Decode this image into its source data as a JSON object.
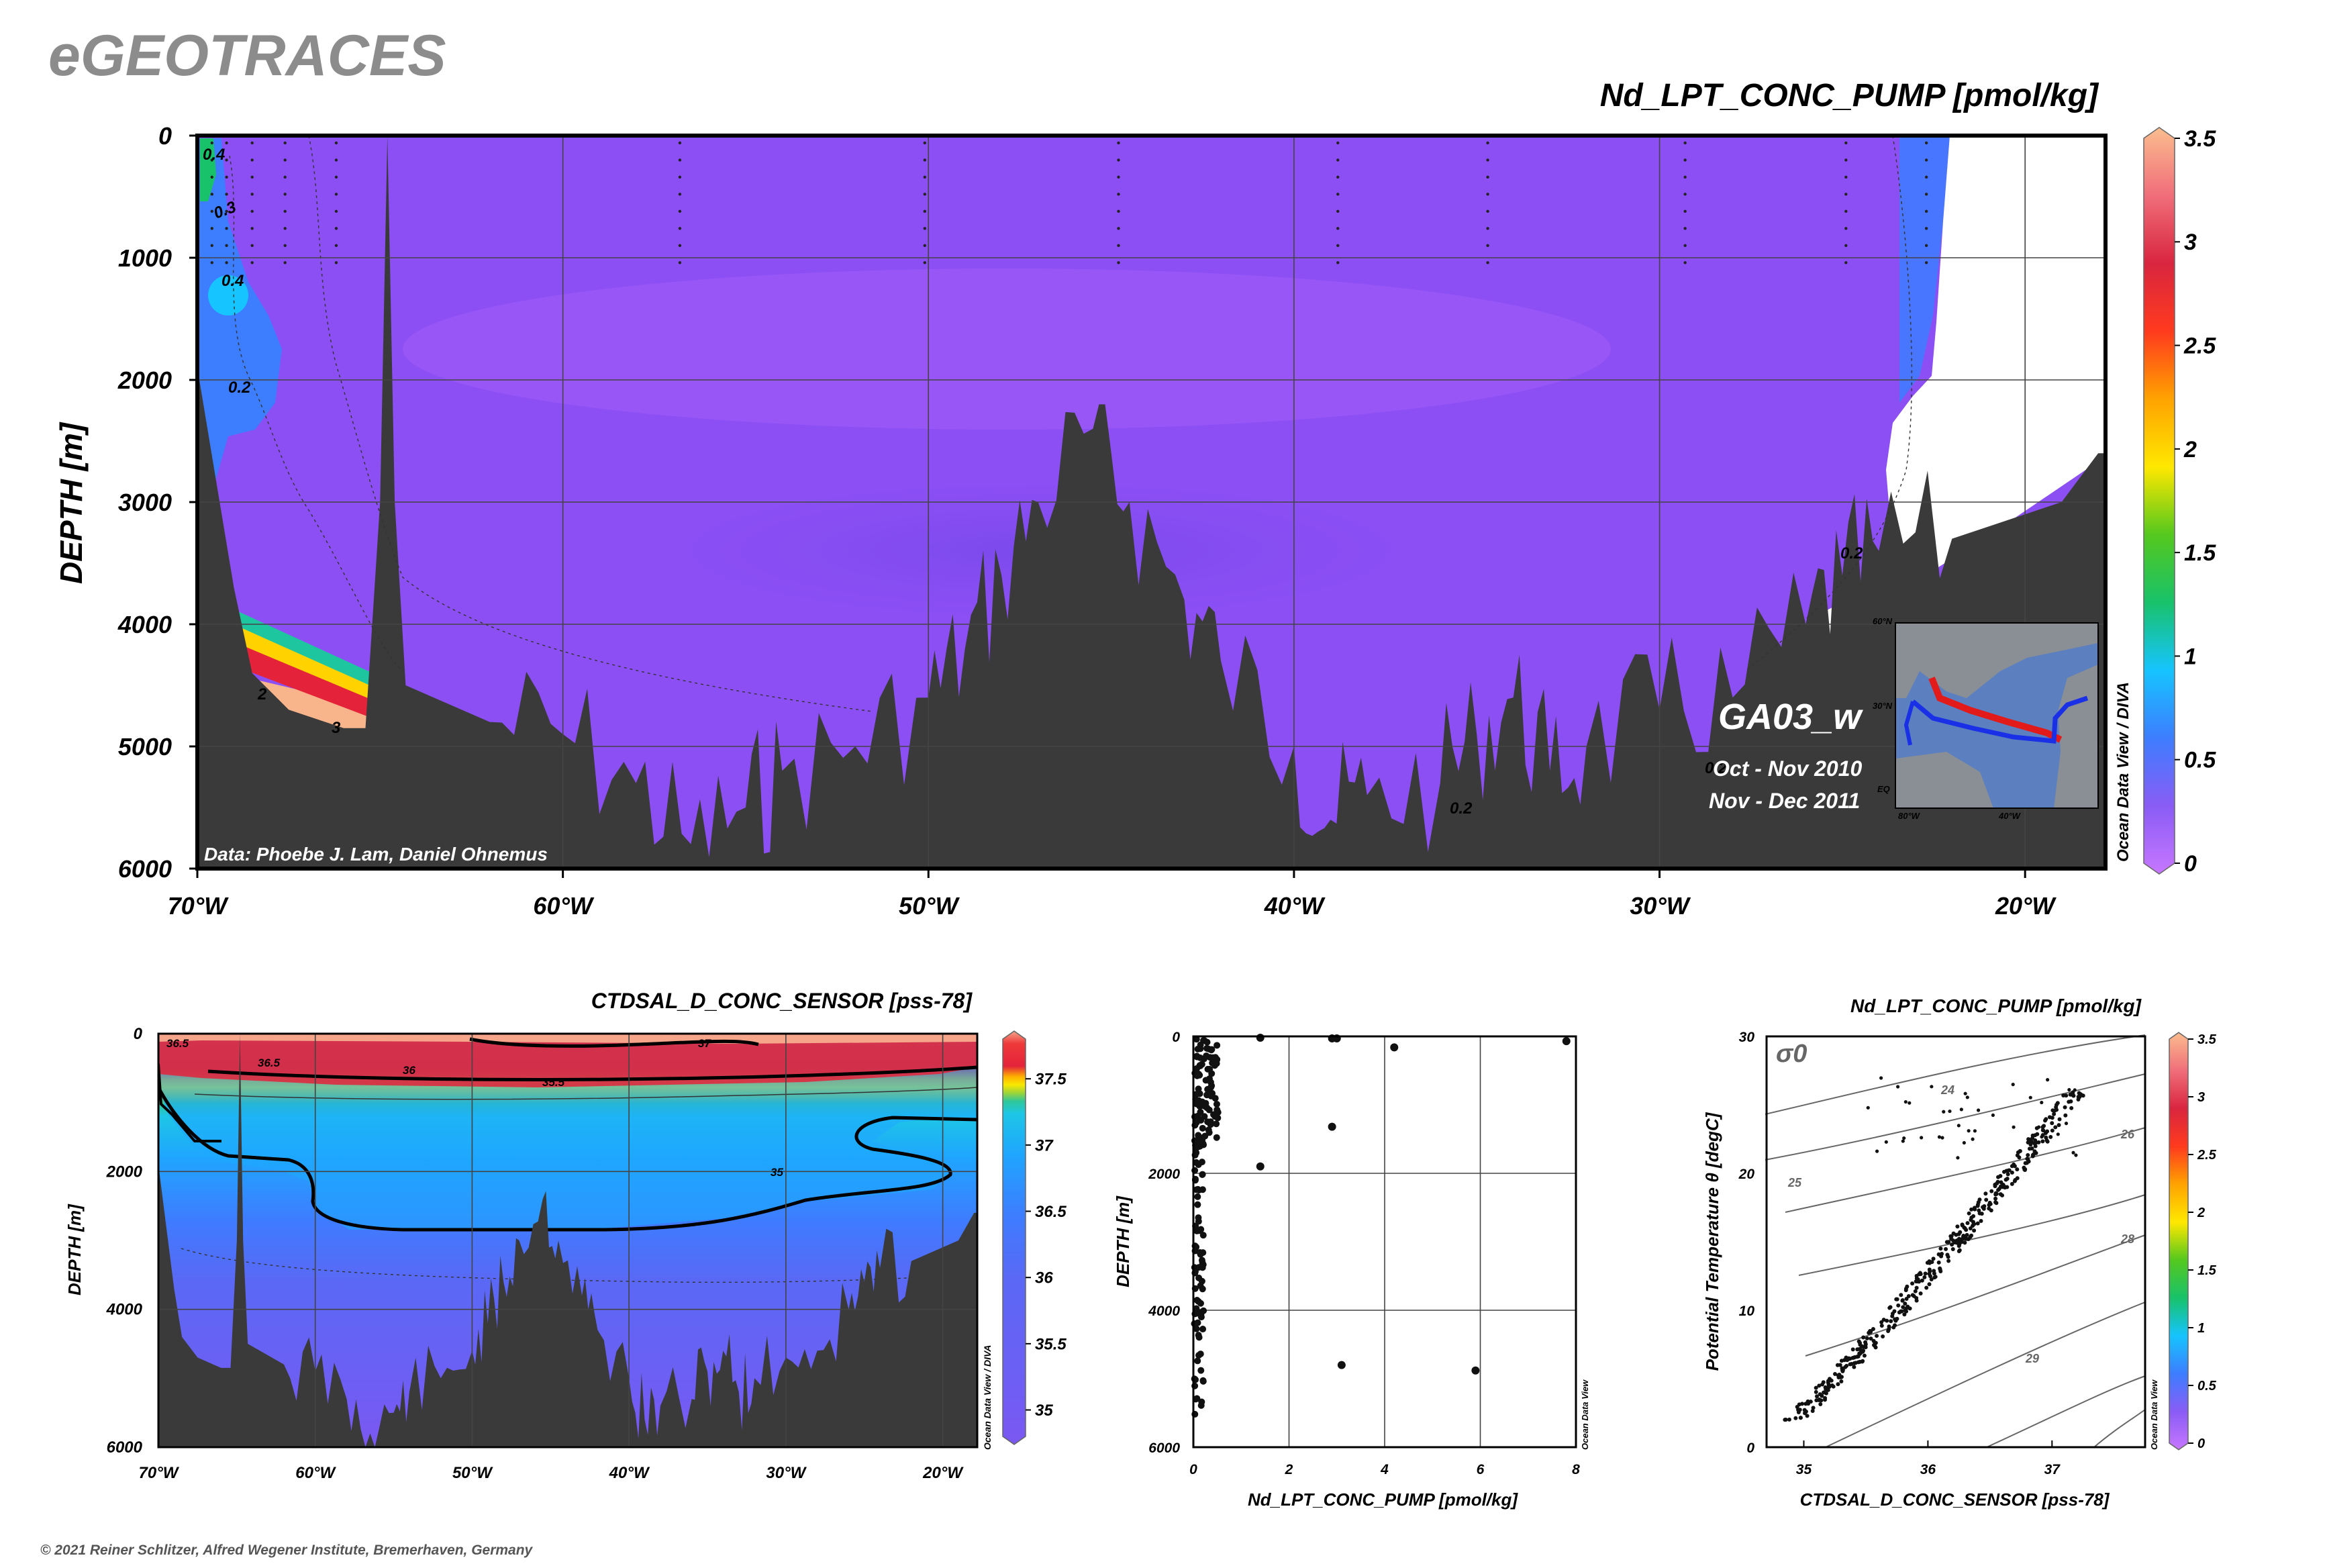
{
  "brand": "eGEOTRACES",
  "copyright": "© 2021 Reiner Schlitzer, Alfred Wegener Institute, Bremerhaven, Germany",
  "colors": {
    "land": "#3a3a3a",
    "colorbar_stops": [
      "#c777ff",
      "#8a5cf5",
      "#3d7dff",
      "#16c4ff",
      "#18c26a",
      "#55c81e",
      "#ffe800",
      "#ffa300",
      "#ff3a1e",
      "#d9263f",
      "#f06e7a",
      "#fbbd8e"
    ],
    "track_red": "#e21a1a",
    "track_blue": "#1930e6"
  },
  "main_panel": {
    "title": "Nd_LPT_CONC_PUMP [pmol/kg]",
    "ylabel": "DEPTH [m]",
    "credit": "Data: Phoebe J. Lam, Daniel Ohnemus",
    "cruise": "GA03_w",
    "dates": [
      "Oct - Nov 2010",
      "Nov - Dec 2011"
    ],
    "watermark": "Ocean Data View / DIVA",
    "contour_labels": [
      "0.4",
      "0.3",
      "0.4",
      "0.2",
      "2",
      "3",
      "0.2",
      "0.2",
      "0.2"
    ],
    "inset_map": {
      "lat_labels": [
        "60°N",
        "30°N",
        "EQ"
      ],
      "lon_labels": [
        "80°W",
        "40°W"
      ]
    }
  },
  "salinity_panel": {
    "title": "CTDSAL_D_CONC_SENSOR [pss-78]",
    "ylabel": "DEPTH [m]",
    "watermark": "Ocean Data View / DIVA",
    "contour_labels": [
      "36.5",
      "36.5",
      "37",
      "36",
      "35.5",
      "35"
    ]
  },
  "profile_panel": {
    "watermark": "Ocean Data View"
  },
  "ts_panel": {
    "title": "Nd_LPT_CONC_PUMP [pmol/kg]",
    "sigma_label": "σ0",
    "isopycnal_labels": [
      "24",
      "25",
      "26",
      "28",
      "29"
    ],
    "watermark": "Ocean Data View"
  },
  "chart_data": [
    {
      "type": "heatmap",
      "title": "Nd_LPT_CONC_PUMP [pmol/kg]",
      "xlabel": "",
      "ylabel": "DEPTH [m]",
      "x_ticks": [
        "70°W",
        "60°W",
        "50°W",
        "40°W",
        "30°W",
        "20°W"
      ],
      "x_tick_values": [
        -70,
        -60,
        -50,
        -40,
        -30,
        -20
      ],
      "xlim": [
        -70,
        -17.8
      ],
      "y_ticks": [
        "0",
        "1000",
        "2000",
        "3000",
        "4000",
        "5000",
        "6000"
      ],
      "y_tick_values": [
        0,
        1000,
        2000,
        3000,
        4000,
        5000,
        6000
      ],
      "ylim": [
        6000,
        0
      ],
      "colorbar_ticks": [
        "0",
        "0.5",
        "1",
        "1.5",
        "2",
        "2.5",
        "3",
        "3.5"
      ],
      "colorbar_values": [
        0,
        0.5,
        1,
        1.5,
        2,
        2.5,
        3,
        3.5
      ],
      "grid": true,
      "bathymetry": [
        [
          -70,
          1900
        ],
        [
          -69.5,
          2800
        ],
        [
          -69,
          3700
        ],
        [
          -68.5,
          4400
        ],
        [
          -67.5,
          4700
        ],
        [
          -66,
          4850
        ],
        [
          -65.4,
          4850
        ],
        [
          -65,
          3000
        ],
        [
          -64.8,
          0
        ],
        [
          -64.6,
          3000
        ],
        [
          -64.3,
          4500
        ],
        [
          -62,
          4800
        ],
        [
          -60,
          4900
        ],
        [
          -58,
          5300
        ],
        [
          -56.5,
          5800
        ],
        [
          -55,
          5500
        ],
        [
          -54,
          5200
        ],
        [
          -52,
          5000
        ],
        [
          -50,
          4600
        ],
        [
          -49,
          4200
        ],
        [
          -48,
          3600
        ],
        [
          -47,
          3000
        ],
        [
          -45.5,
          2400
        ],
        [
          -44.5,
          3000
        ],
        [
          -43,
          3800
        ],
        [
          -42,
          4300
        ],
        [
          -40,
          5000
        ],
        [
          -39,
          5600
        ],
        [
          -38,
          5400
        ],
        [
          -36,
          5300
        ],
        [
          -35,
          4900
        ],
        [
          -34,
          4600
        ],
        [
          -33,
          5200
        ],
        [
          -32,
          5000
        ],
        [
          -30,
          4700
        ],
        [
          -28,
          4600
        ],
        [
          -26,
          4000
        ],
        [
          -25,
          3600
        ],
        [
          -24,
          3400
        ],
        [
          -22,
          3300
        ],
        [
          -19,
          3000
        ],
        [
          -18,
          2600
        ],
        [
          -17.8,
          2600
        ]
      ]
    },
    {
      "type": "heatmap",
      "title": "CTDSAL_D_CONC_SENSOR [pss-78]",
      "xlabel": "",
      "ylabel": "DEPTH [m]",
      "x_ticks": [
        "70°W",
        "60°W",
        "50°W",
        "40°W",
        "30°W",
        "20°W"
      ],
      "x_tick_values": [
        -70,
        -60,
        -50,
        -40,
        -30,
        -20
      ],
      "xlim": [
        -70,
        -17.8
      ],
      "y_ticks": [
        "0",
        "2000",
        "4000",
        "6000"
      ],
      "y_tick_values": [
        0,
        2000,
        4000,
        6000
      ],
      "ylim": [
        6000,
        0
      ],
      "colorbar_ticks": [
        "35",
        "35.5",
        "36",
        "36.5",
        "37",
        "37.5"
      ],
      "colorbar_values": [
        35,
        35.5,
        36,
        36.5,
        37,
        37.5
      ],
      "grid": true
    },
    {
      "type": "scatter",
      "title": "",
      "xlabel": "Nd_LPT_CONC_PUMP [pmol/kg]",
      "ylabel": "DEPTH [m]",
      "x_ticks": [
        "0",
        "2",
        "4",
        "6",
        "8"
      ],
      "x_tick_values": [
        0,
        2,
        4,
        6,
        8
      ],
      "xlim": [
        0,
        8
      ],
      "y_ticks": [
        "0",
        "2000",
        "4000",
        "6000"
      ],
      "y_tick_values": [
        0,
        2000,
        4000,
        6000
      ],
      "ylim": [
        6000,
        0
      ],
      "grid": true,
      "outliers": [
        [
          1.4,
          20
        ],
        [
          2.9,
          30
        ],
        [
          3.0,
          30
        ],
        [
          4.2,
          160
        ],
        [
          7.8,
          70
        ],
        [
          2.9,
          1320
        ],
        [
          1.4,
          1900
        ],
        [
          3.1,
          4800
        ],
        [
          5.9,
          4880
        ]
      ]
    },
    {
      "type": "scatter",
      "title": "Nd_LPT_CONC_PUMP [pmol/kg]",
      "xlabel": "CTDSAL_D_CONC_SENSOR [pss-78]",
      "ylabel": "Potential Temperature θ [degC]",
      "x_ticks": [
        "35",
        "36",
        "37"
      ],
      "x_tick_values": [
        35,
        36,
        37
      ],
      "xlim": [
        34.7,
        37.75
      ],
      "y_ticks": [
        "0",
        "10",
        "20",
        "30"
      ],
      "y_tick_values": [
        0,
        10,
        20,
        30
      ],
      "ylim": [
        0,
        30
      ],
      "colorbar_ticks": [
        "0",
        "0.5",
        "1",
        "1.5",
        "2",
        "2.5",
        "3",
        "3.5"
      ],
      "colorbar_values": [
        0,
        0.5,
        1,
        1.5,
        2,
        2.5,
        3,
        3.5
      ],
      "grid": true
    }
  ]
}
